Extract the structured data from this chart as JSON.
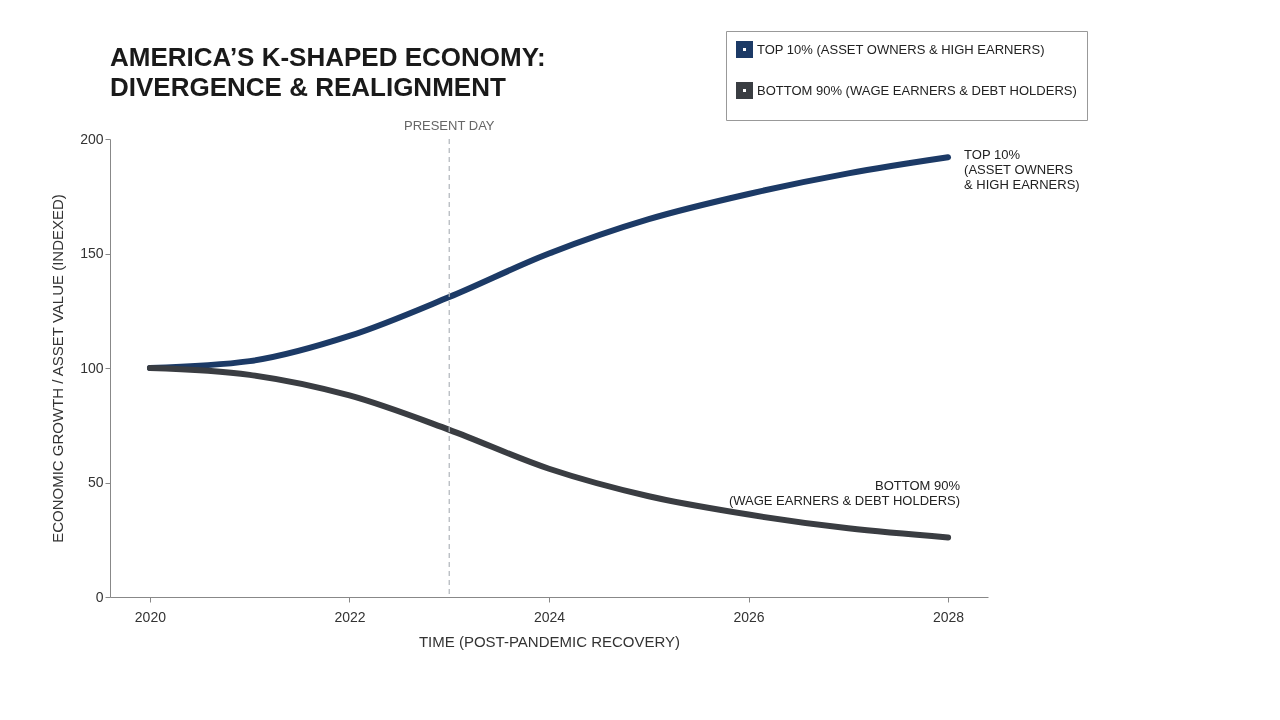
{
  "chart_data": {
    "type": "line",
    "title": "AMERICA’S K-SHAPED ECONOMY:\nDIVERGENCE & REALIGNMENT",
    "xlabel": "TIME (POST-PANDEMIC RECOVERY)",
    "ylabel": "ECONOMIC GROWTH / ASSET VALUE (INDEXED)",
    "x": [
      2020,
      2021,
      2022,
      2023,
      2024,
      2025,
      2026,
      2027,
      2028
    ],
    "series": [
      {
        "name": "TOP 10% (ASSET OWNERS & HIGH EARNERS)",
        "color": "#1c3a66",
        "values": [
          100,
          103,
          114,
          131,
          150,
          165,
          176,
          185,
          192
        ]
      },
      {
        "name": "BOTTOM 90% (WAGE EARNERS & DEBT HOLDERS)",
        "color": "#3a3d42",
        "values": [
          100,
          97,
          88,
          73,
          56,
          44,
          36,
          30,
          26
        ]
      }
    ],
    "xlim": [
      2019.6,
      2028.4
    ],
    "xticks": [
      2020,
      2022,
      2024,
      2026,
      2028
    ],
    "ylim": [
      0,
      200
    ],
    "yticks": [
      0,
      50,
      100,
      150,
      200
    ],
    "grid": false,
    "legend": "top right",
    "marker": "none",
    "line_style": "solid",
    "ref_lines": [
      {
        "axis": "x",
        "value": 2023,
        "label": "PRESENT DAY",
        "color": "#b0b4ba",
        "line_style": "dashed"
      }
    ],
    "annotations": [
      "TOP 10%\n(ASSET OWNERS\n& HIGH EARNERS)",
      "BOTTOM 90%\n(WAGE EARNERS & DEBT HOLDERS)"
    ]
  }
}
